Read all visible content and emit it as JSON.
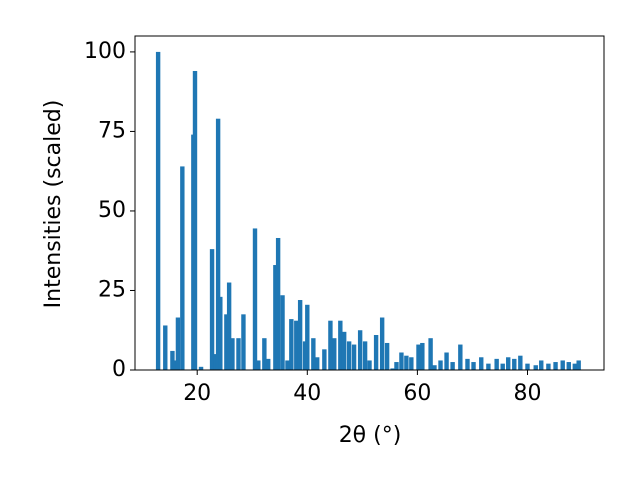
{
  "chart_data": {
    "type": "bar",
    "xlabel": "2θ (°)",
    "ylabel": "Intensities (scaled)",
    "x": [
      12.9,
      14.2,
      15.5,
      15.9,
      16.5,
      17.3,
      19.3,
      19.6,
      20.7,
      22.7,
      23.3,
      23.8,
      24.2,
      25.3,
      25.8,
      26.4,
      27.5,
      28.4,
      30.5,
      31.1,
      32.2,
      32.9,
      34.2,
      34.7,
      35.5,
      36.4,
      37.1,
      38.0,
      38.7,
      39.6,
      40.0,
      41.1,
      41.8,
      43.1,
      44.2,
      44.9,
      46.0,
      46.7,
      47.6,
      48.5,
      49.6,
      50.5,
      51.3,
      52.5,
      53.6,
      54.5,
      55.5,
      56.2,
      57.1,
      58.0,
      58.9,
      60.2,
      60.9,
      62.4,
      63.1,
      64.2,
      65.3,
      66.4,
      67.8,
      69.1,
      70.2,
      71.6,
      72.9,
      74.4,
      75.5,
      76.5,
      77.6,
      78.7,
      80.0,
      81.5,
      82.5,
      83.8,
      85.1,
      86.4,
      87.5,
      88.6,
      89.3
    ],
    "values": [
      100,
      14,
      6,
      3,
      16.5,
      64,
      74,
      94,
      1,
      38,
      5,
      79,
      23,
      17.5,
      27.5,
      10,
      10,
      17.5,
      44.5,
      3,
      10,
      3.5,
      33,
      41.5,
      23.5,
      3,
      16,
      15.5,
      22,
      9,
      20.5,
      10,
      4,
      6.5,
      15.5,
      10,
      15.5,
      12,
      9,
      8,
      12.5,
      9,
      3,
      11,
      16.5,
      8.5,
      0.5,
      2.5,
      5.5,
      4.5,
      4,
      8,
      8.5,
      10,
      1.5,
      3,
      5.5,
      2.5,
      8,
      3.5,
      2.5,
      4,
      2,
      3.5,
      2,
      4,
      3.5,
      4.5,
      2,
      1.5,
      3,
      2,
      2.5,
      3,
      2.5,
      2,
      3
    ],
    "color": "#1f77b4",
    "xlim": [
      8.7,
      93.9
    ],
    "xticks": [
      20,
      40,
      60,
      80
    ],
    "ylim": [
      0,
      105
    ],
    "yticks": [
      0,
      25,
      50,
      75,
      100
    ]
  }
}
